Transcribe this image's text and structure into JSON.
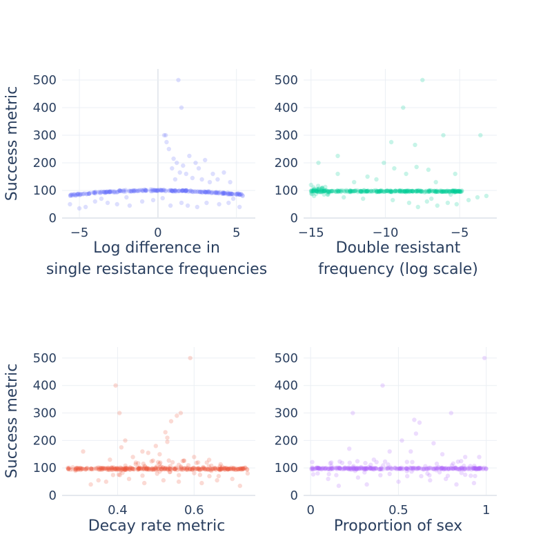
{
  "chart_data": [
    {
      "type": "scatter",
      "color": "#636efa",
      "opacity": 0.22,
      "xlabel_lines": [
        "Log difference in",
        "single resistance frequencies"
      ],
      "ylabel": "Success metric",
      "xlim": [
        -6.1,
        6.2
      ],
      "ylim": [
        0,
        540
      ],
      "xticks": [
        -5,
        0,
        5
      ],
      "xticklabels": [
        "−5",
        "0",
        "5"
      ],
      "yticks": [
        0,
        100,
        200,
        300,
        400,
        500
      ],
      "yticklabels": [
        "0",
        "100",
        "200",
        "300",
        "400",
        "500"
      ],
      "zero_line_x": true,
      "outliers": [
        [
          1.3,
          500
        ],
        [
          1.5,
          400
        ],
        [
          0.4,
          300
        ],
        [
          0.5,
          300
        ],
        [
          0.55,
          275
        ],
        [
          0.7,
          250
        ],
        [
          1.0,
          215
        ],
        [
          1.2,
          200
        ],
        [
          1.6,
          190
        ],
        [
          2.0,
          225
        ],
        [
          2.4,
          200
        ],
        [
          2.6,
          180
        ],
        [
          3.0,
          210
        ],
        [
          3.5,
          160
        ],
        [
          4.2,
          165
        ],
        [
          1.4,
          165
        ],
        [
          1.8,
          160
        ],
        [
          0.9,
          180
        ],
        [
          2.8,
          140
        ],
        [
          3.3,
          130
        ],
        [
          4.6,
          130
        ],
        [
          1.1,
          140
        ],
        [
          2.2,
          145
        ],
        [
          3.8,
          140
        ],
        [
          -5.6,
          50
        ],
        [
          -5.0,
          35
        ],
        [
          -4.6,
          40
        ],
        [
          -4.0,
          60
        ],
        [
          -3.2,
          55
        ],
        [
          -2.6,
          50
        ],
        [
          -1.8,
          45
        ],
        [
          -1.0,
          60
        ],
        [
          -0.3,
          65
        ],
        [
          0.8,
          45
        ],
        [
          1.9,
          45
        ],
        [
          2.5,
          40
        ],
        [
          3.1,
          55
        ],
        [
          3.9,
          50
        ],
        [
          4.5,
          55
        ],
        [
          5.2,
          40
        ],
        [
          -3.6,
          70
        ],
        [
          -2.0,
          75
        ],
        [
          0.3,
          72
        ],
        [
          1.5,
          55
        ],
        [
          4.8,
          70
        ],
        [
          5.4,
          80
        ]
      ]
    },
    {
      "type": "scatter",
      "color": "#00cc96",
      "opacity": 0.22,
      "xlabel_lines": [
        "Double resistant",
        "frequency (log scale)"
      ],
      "ylabel": "",
      "xlim": [
        -15.5,
        -2.5
      ],
      "ylim": [
        0,
        540
      ],
      "xticks": [
        -15,
        -10,
        -5
      ],
      "xticklabels": [
        "−15",
        "−10",
        "−5"
      ],
      "yticks": [
        0,
        100,
        200,
        300,
        400,
        500
      ],
      "yticklabels": [
        "0",
        "100",
        "200",
        "300",
        "400",
        "500"
      ],
      "zero_line_x": false,
      "outliers": [
        [
          -7.5,
          500
        ],
        [
          -8.8,
          400
        ],
        [
          -6.1,
          300
        ],
        [
          -3.6,
          300
        ],
        [
          -9.6,
          275
        ],
        [
          -8.0,
          265
        ],
        [
          -13.2,
          225
        ],
        [
          -14.5,
          200
        ],
        [
          -10.1,
          200
        ],
        [
          -9.4,
          180
        ],
        [
          -7.9,
          185
        ],
        [
          -7.1,
          175
        ],
        [
          -13.2,
          160
        ],
        [
          -11.2,
          150
        ],
        [
          -8.6,
          160
        ],
        [
          -5.3,
          160
        ],
        [
          -10.6,
          140
        ],
        [
          -12.1,
          130
        ],
        [
          -6.6,
          130
        ],
        [
          -7.2,
          60
        ],
        [
          -6.5,
          45
        ],
        [
          -5.8,
          55
        ],
        [
          -5.2,
          50
        ],
        [
          -7.8,
          40
        ],
        [
          -8.4,
          55
        ],
        [
          -9.5,
          65
        ],
        [
          -4.4,
          65
        ],
        [
          -3.8,
          75
        ],
        [
          -3.2,
          80
        ],
        [
          -6.9,
          70
        ],
        [
          -5.6,
          85
        ],
        [
          -11.5,
          70
        ],
        [
          -12.8,
          75
        ],
        [
          -14.8,
          80
        ],
        [
          -15.0,
          120
        ]
      ]
    },
    {
      "type": "scatter",
      "color": "#ef553b",
      "opacity": 0.22,
      "xlabel_lines": [
        "Decay rate metric"
      ],
      "ylabel": "Success metric",
      "xlim": [
        0.255,
        0.76
      ],
      "ylim": [
        0,
        540
      ],
      "xticks": [
        0.4,
        0.6
      ],
      "xticklabels": [
        "0.4",
        "0.6"
      ],
      "yticks": [
        0,
        100,
        200,
        300,
        400,
        500
      ],
      "yticklabels": [
        "0",
        "100",
        "200",
        "300",
        "400",
        "500"
      ],
      "zero_line_x": false,
      "outliers": [
        [
          0.59,
          500
        ],
        [
          0.395,
          400
        ],
        [
          0.405,
          300
        ],
        [
          0.565,
          300
        ],
        [
          0.555,
          290
        ],
        [
          0.54,
          270
        ],
        [
          0.525,
          230
        ],
        [
          0.53,
          210
        ],
        [
          0.42,
          200
        ],
        [
          0.53,
          195
        ],
        [
          0.41,
          175
        ],
        [
          0.5,
          180
        ],
        [
          0.465,
          160
        ],
        [
          0.48,
          155
        ],
        [
          0.51,
          150
        ],
        [
          0.31,
          160
        ],
        [
          0.44,
          140
        ],
        [
          0.38,
          130
        ],
        [
          0.57,
          125
        ],
        [
          0.6,
          140
        ],
        [
          0.33,
          40
        ],
        [
          0.35,
          55
        ],
        [
          0.37,
          50
        ],
        [
          0.43,
          60
        ],
        [
          0.47,
          45
        ],
        [
          0.52,
          55
        ],
        [
          0.56,
          50
        ],
        [
          0.62,
          45
        ],
        [
          0.66,
          55
        ],
        [
          0.7,
          60
        ],
        [
          0.74,
          80
        ],
        [
          0.72,
          35
        ],
        [
          0.29,
          90
        ],
        [
          0.27,
          100
        ],
        [
          0.64,
          70
        ]
      ]
    },
    {
      "type": "scatter",
      "color": "#ab63fa",
      "opacity": 0.22,
      "xlabel_lines": [
        "Proportion of sex"
      ],
      "ylabel": "",
      "xlim": [
        -0.04,
        1.06
      ],
      "ylim": [
        0,
        540
      ],
      "xticks": [
        0,
        0.5,
        1
      ],
      "xticklabels": [
        "0",
        "0.5",
        "1"
      ],
      "yticks": [
        0,
        100,
        200,
        300,
        400,
        500
      ],
      "yticklabels": [
        "0",
        "100",
        "200",
        "300",
        "400",
        "500"
      ],
      "zero_line_x": false,
      "outliers": [
        [
          0.99,
          500
        ],
        [
          0.41,
          400
        ],
        [
          0.24,
          300
        ],
        [
          0.59,
          275
        ],
        [
          0.62,
          265
        ],
        [
          0.8,
          300
        ],
        [
          0.52,
          200
        ],
        [
          0.6,
          225
        ],
        [
          0.7,
          190
        ],
        [
          0.57,
          160
        ],
        [
          0.22,
          170
        ],
        [
          0.45,
          160
        ],
        [
          0.88,
          140
        ],
        [
          0.96,
          140
        ],
        [
          0.36,
          130
        ],
        [
          0.75,
          150
        ],
        [
          0.16,
          35
        ],
        [
          0.32,
          40
        ],
        [
          0.5,
          50
        ],
        [
          0.68,
          55
        ],
        [
          0.83,
          40
        ],
        [
          0.93,
          45
        ],
        [
          0.1,
          60
        ],
        [
          0.27,
          65
        ],
        [
          0.63,
          70
        ],
        [
          0.88,
          75
        ],
        [
          0.04,
          80
        ],
        [
          0.77,
          60
        ],
        [
          0.55,
          70
        ]
      ]
    }
  ]
}
